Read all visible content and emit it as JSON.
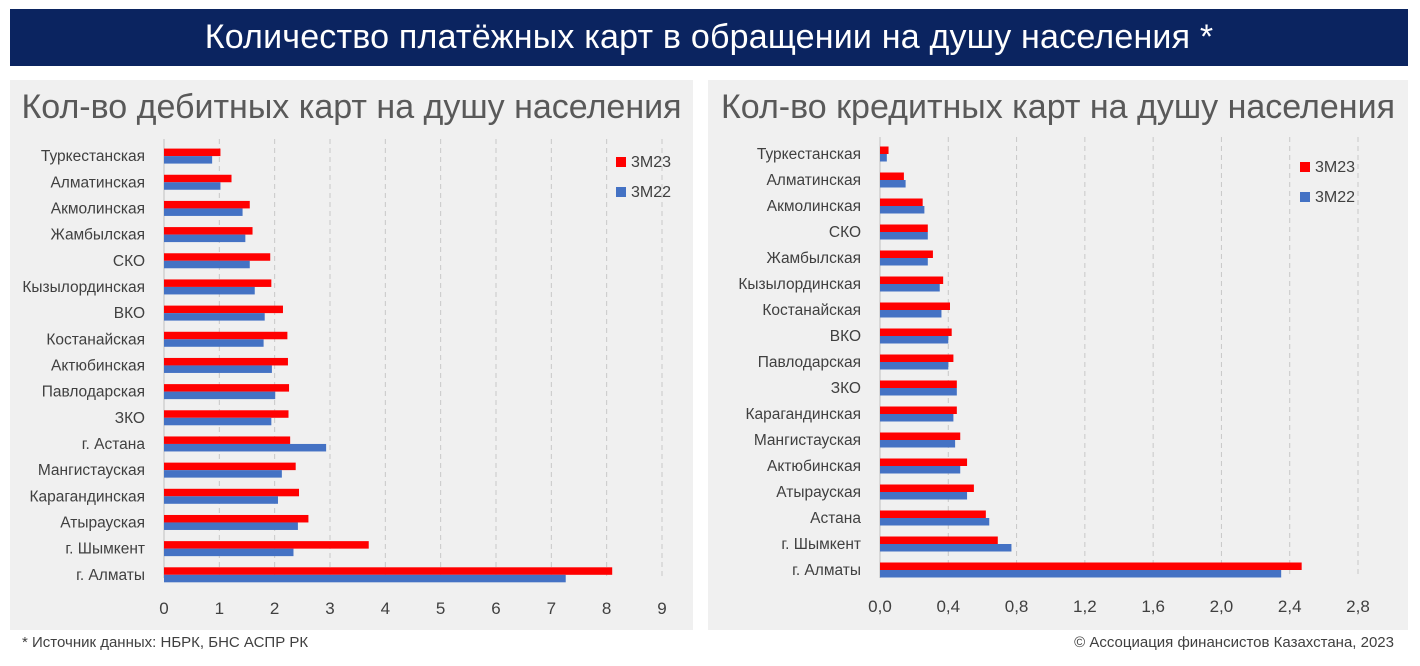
{
  "header": {
    "title": "Количество платёжных карт в обращении на душу населения *"
  },
  "footer": {
    "source": "* Источник данных: НБРК, БНС АСПР РК",
    "copyright": "© Ассоциация финансистов Казахстана, 2023"
  },
  "colors": {
    "series_3m23": "#ff0000",
    "series_3m22": "#4472c4",
    "banner": "#0b2460"
  },
  "chart_data": [
    {
      "type": "bar",
      "orientation": "horizontal",
      "title": "Кол-во дебитных карт на душу населения",
      "categories": [
        "Туркестанская",
        "Алматинская",
        "Акмолинская",
        "Жамбылская",
        "СКО",
        "Кызылординская",
        "ВКО",
        "Костанайская",
        "Актюбинская",
        "Павлодарская",
        "ЗКО",
        "г. Астана",
        "Мангистауская",
        "Карагандинская",
        "Атырауская",
        "г. Шымкент",
        "г. Алматы"
      ],
      "series": [
        {
          "name": "3М23",
          "values": [
            1.02,
            1.22,
            1.55,
            1.6,
            1.92,
            1.94,
            2.15,
            2.23,
            2.24,
            2.26,
            2.25,
            2.28,
            2.38,
            2.44,
            2.61,
            3.7,
            8.1
          ]
        },
        {
          "name": "3М22",
          "values": [
            0.87,
            1.02,
            1.42,
            1.47,
            1.55,
            1.64,
            1.82,
            1.8,
            1.95,
            2.01,
            1.94,
            2.93,
            2.13,
            2.06,
            2.42,
            2.34,
            7.26
          ]
        }
      ],
      "xlim": [
        0,
        9
      ],
      "xticks": [
        "0",
        "1",
        "2",
        "3",
        "4",
        "5",
        "6",
        "7",
        "8",
        "9"
      ],
      "xtick_values": [
        0,
        1,
        2,
        3,
        4,
        5,
        6,
        7,
        8,
        9
      ],
      "grid": true,
      "legend": "top-right"
    },
    {
      "type": "bar",
      "orientation": "horizontal",
      "title": "Кол-во кредитных карт на душу населения",
      "categories": [
        "Туркестанская",
        "Алматинская",
        "Акмолинская",
        "СКО",
        "Жамбылская",
        "Кызылординская",
        "Костанайская",
        "ВКО",
        "Павлодарская",
        "ЗКО",
        "Карагандинская",
        "Мангистауская",
        "Актюбинская",
        "Атырауская",
        "Астана",
        "г. Шымкент",
        "г. Алматы"
      ],
      "series": [
        {
          "name": "3М23",
          "values": [
            0.05,
            0.14,
            0.25,
            0.28,
            0.31,
            0.37,
            0.41,
            0.42,
            0.43,
            0.45,
            0.45,
            0.47,
            0.51,
            0.55,
            0.62,
            0.69,
            2.47
          ]
        },
        {
          "name": "3М22",
          "values": [
            0.04,
            0.15,
            0.26,
            0.28,
            0.28,
            0.35,
            0.36,
            0.4,
            0.4,
            0.45,
            0.43,
            0.44,
            0.47,
            0.51,
            0.64,
            0.77,
            2.35
          ]
        }
      ],
      "xlim": [
        0,
        2.8
      ],
      "xticks": [
        "0,0",
        "0,4",
        "0,8",
        "1,2",
        "1,6",
        "2,0",
        "2,4",
        "2,8"
      ],
      "xtick_values": [
        0,
        0.4,
        0.8,
        1.2,
        1.6,
        2.0,
        2.4,
        2.8
      ],
      "grid": true,
      "legend": "top-right"
    }
  ]
}
